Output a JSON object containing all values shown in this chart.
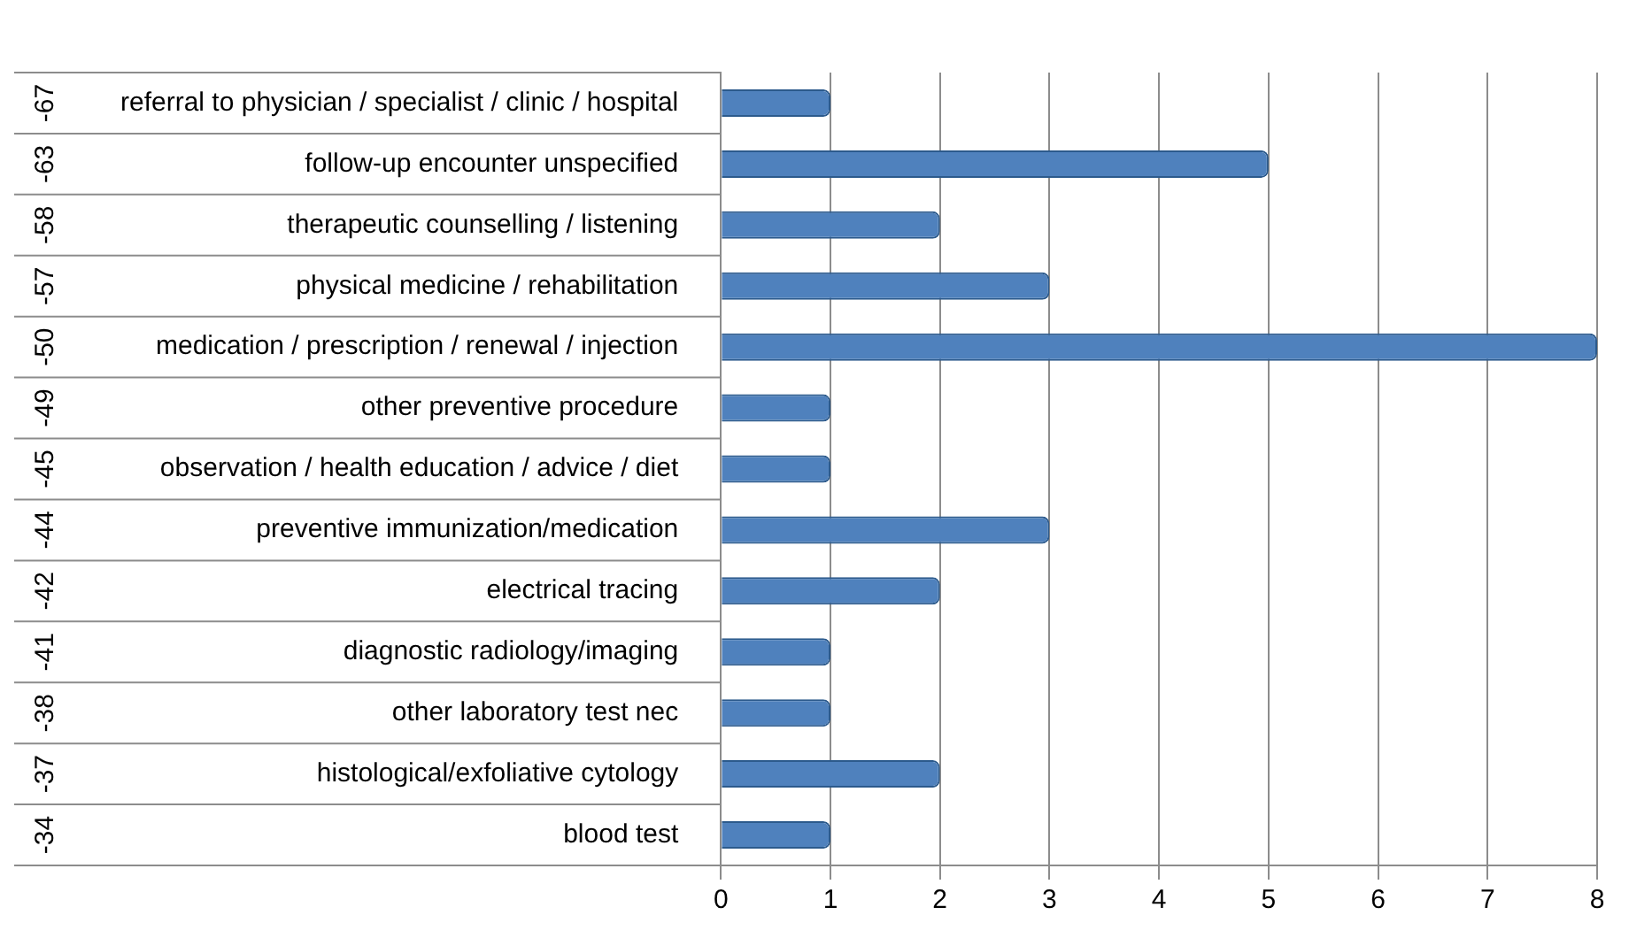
{
  "chart_data": {
    "type": "bar",
    "orientation": "horizontal",
    "categories": [
      "referral to physician / specialist / clinic / hospital",
      "follow-up encounter unspecified",
      "therapeutic counselling / listening",
      "physical medicine / rehabilitation",
      "medication / prescription / renewal / injection",
      "other preventive procedure",
      "observation / health education / advice / diet",
      "preventive immunization/medication",
      "electrical tracing",
      "diagnostic radiology/imaging",
      "other laboratory test nec",
      "histological/exfoliative cytology",
      "blood test"
    ],
    "y2_categories": [
      "-67",
      "-63",
      "-58",
      "-57",
      "-50",
      "-49",
      "-45",
      "-44",
      "-42",
      "-41",
      "-38",
      "-37",
      "-34"
    ],
    "values": [
      1,
      5,
      2,
      3,
      8,
      1,
      1,
      3,
      2,
      1,
      1,
      2,
      1
    ],
    "color": "#4f81bd",
    "xlim": [
      0,
      8
    ],
    "xticks": [
      0,
      1,
      2,
      3,
      4,
      5,
      6,
      7,
      8
    ],
    "grid": "x",
    "legend": false
  }
}
